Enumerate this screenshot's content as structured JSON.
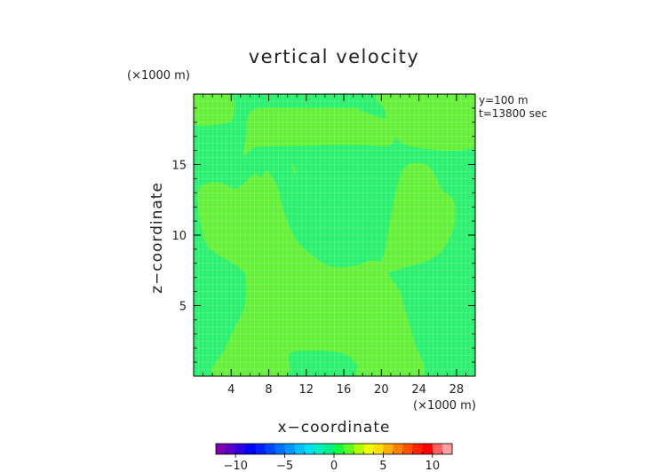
{
  "chart_data": {
    "type": "heatmap",
    "title": "vertical velocity",
    "xlabel": "x−coordinate",
    "ylabel": "z−coordinate",
    "x_unit": "(×1000 m)",
    "y_unit": "(×1000 m)",
    "xlim": [
      0,
      30
    ],
    "ylim": [
      0,
      20
    ],
    "x_ticks": [
      4,
      8,
      12,
      16,
      20,
      24,
      28
    ],
    "y_ticks": [
      5,
      10,
      15
    ],
    "annotations": [
      "y=100 m",
      "t=13800 sec"
    ],
    "colorbar": {
      "range": [
        -12,
        12
      ],
      "ticks": [
        -10,
        -5,
        0,
        5,
        10
      ],
      "tick_labels": [
        "−10",
        "−5",
        "0",
        "5",
        "10"
      ],
      "colors": [
        "#7f00b0",
        "#5a00c8",
        "#2d00e0",
        "#0000ff",
        "#0020ff",
        "#0048ff",
        "#0070ff",
        "#0098ff",
        "#00c0ff",
        "#00e0f0",
        "#00f0c0",
        "#00f08a",
        "#10ff40",
        "#60ff20",
        "#b0ff00",
        "#f0ff00",
        "#ffe000",
        "#ffb000",
        "#ff8000",
        "#ff5000",
        "#ff2000",
        "#ff0000",
        "#ff6060",
        "#ffa0a0"
      ]
    },
    "levels": [
      {
        "name": "lower",
        "color": "#2cf070"
      },
      {
        "name": "upper",
        "color": "#66f03a"
      }
    ],
    "regions": [
      {
        "level": "upper",
        "points": [
          [
            0,
            20
          ],
          [
            3.9,
            20
          ],
          [
            4.2,
            18.3
          ],
          [
            3.2,
            17.9
          ],
          [
            0,
            17.9
          ]
        ]
      },
      {
        "level": "upper",
        "points": [
          [
            20.1,
            20
          ],
          [
            30,
            20
          ],
          [
            30,
            16.3
          ],
          [
            23,
            16.3
          ],
          [
            21,
            17.6
          ],
          [
            20.3,
            18.9
          ]
        ]
      },
      {
        "level": "upper",
        "points": [
          [
            5.3,
            15.6
          ],
          [
            6.5,
            16.2
          ],
          [
            10,
            16.3
          ],
          [
            17,
            16.4
          ],
          [
            20,
            16.3
          ],
          [
            21,
            16.4
          ],
          [
            21.4,
            16.8
          ],
          [
            21.4,
            17.8
          ],
          [
            20.8,
            18.2
          ],
          [
            19.5,
            18.4
          ],
          [
            18,
            18.8
          ],
          [
            17,
            19
          ],
          [
            12,
            19
          ],
          [
            7,
            19
          ],
          [
            5.8,
            18.4
          ],
          [
            5.6,
            17
          ]
        ]
      },
      {
        "level": "upper",
        "points": [
          [
            9.6,
            0
          ],
          [
            10.3,
            1.6
          ],
          [
            13,
            1.8
          ],
          [
            16,
            1.6
          ],
          [
            17.4,
            0.8
          ],
          [
            17.8,
            0
          ],
          [
            24.3,
            0
          ],
          [
            23.5,
            2.5
          ],
          [
            22.5,
            4.8
          ],
          [
            22,
            6
          ],
          [
            21.2,
            6.8
          ],
          [
            20.8,
            7.3
          ],
          [
            22,
            7.6
          ],
          [
            25,
            8.2
          ],
          [
            26.7,
            9.1
          ],
          [
            27.8,
            10.8
          ],
          [
            27.7,
            12.5
          ],
          [
            26.5,
            13.2
          ],
          [
            25.2,
            14.8
          ],
          [
            23.5,
            15.1
          ],
          [
            22.2,
            14.5
          ],
          [
            21.2,
            12
          ],
          [
            20.2,
            8.5
          ],
          [
            19.2,
            8.2
          ],
          [
            16.5,
            8.3
          ],
          [
            15,
            8.6
          ],
          [
            14.2,
            9.2
          ],
          [
            13.4,
            9.7
          ],
          [
            12.6,
            10.4
          ],
          [
            11.9,
            11.5
          ],
          [
            11.5,
            12.6
          ],
          [
            11,
            14
          ],
          [
            10.7,
            14.9
          ],
          [
            9.5,
            15.2
          ],
          [
            8.6,
            15
          ],
          [
            7.8,
            14.6
          ],
          [
            7.1,
            14.1
          ],
          [
            6.6,
            14.4
          ],
          [
            6.2,
            14.2
          ],
          [
            4.5,
            13.3
          ],
          [
            3,
            13.7
          ],
          [
            1.7,
            13.7
          ],
          [
            0.6,
            13.3
          ],
          [
            0.5,
            12
          ],
          [
            0.9,
            10.3
          ],
          [
            1.5,
            9.2
          ],
          [
            2.9,
            8.5
          ],
          [
            5.2,
            7.5
          ],
          [
            5.6,
            6.6
          ],
          [
            5.4,
            4.9
          ],
          [
            4.2,
            3.2
          ],
          [
            3.4,
            2
          ],
          [
            2.2,
            0
          ]
        ]
      },
      {
        "level": "lower",
        "points": [
          [
            7.9,
            14.6
          ],
          [
            8.8,
            13.6
          ],
          [
            9.8,
            11.4
          ],
          [
            11,
            9.6
          ],
          [
            12.6,
            8.6
          ],
          [
            14.5,
            7.8
          ],
          [
            17,
            7.8
          ],
          [
            18.5,
            8.2
          ],
          [
            19.6,
            9.2
          ],
          [
            20.5,
            11
          ],
          [
            21,
            12.9
          ],
          [
            20.9,
            14.6
          ],
          [
            20,
            16
          ],
          [
            19,
            16.2
          ],
          [
            17.8,
            15
          ],
          [
            17.2,
            13.2
          ],
          [
            16.5,
            12.2
          ],
          [
            15.3,
            10.8
          ],
          [
            14.1,
            10.3
          ],
          [
            13.1,
            10.3
          ],
          [
            12.1,
            11.3
          ],
          [
            11.3,
            13.3
          ],
          [
            10.3,
            15.1
          ],
          [
            9.3,
            15.4
          ],
          [
            8.4,
            15.3
          ]
        ]
      }
    ]
  }
}
